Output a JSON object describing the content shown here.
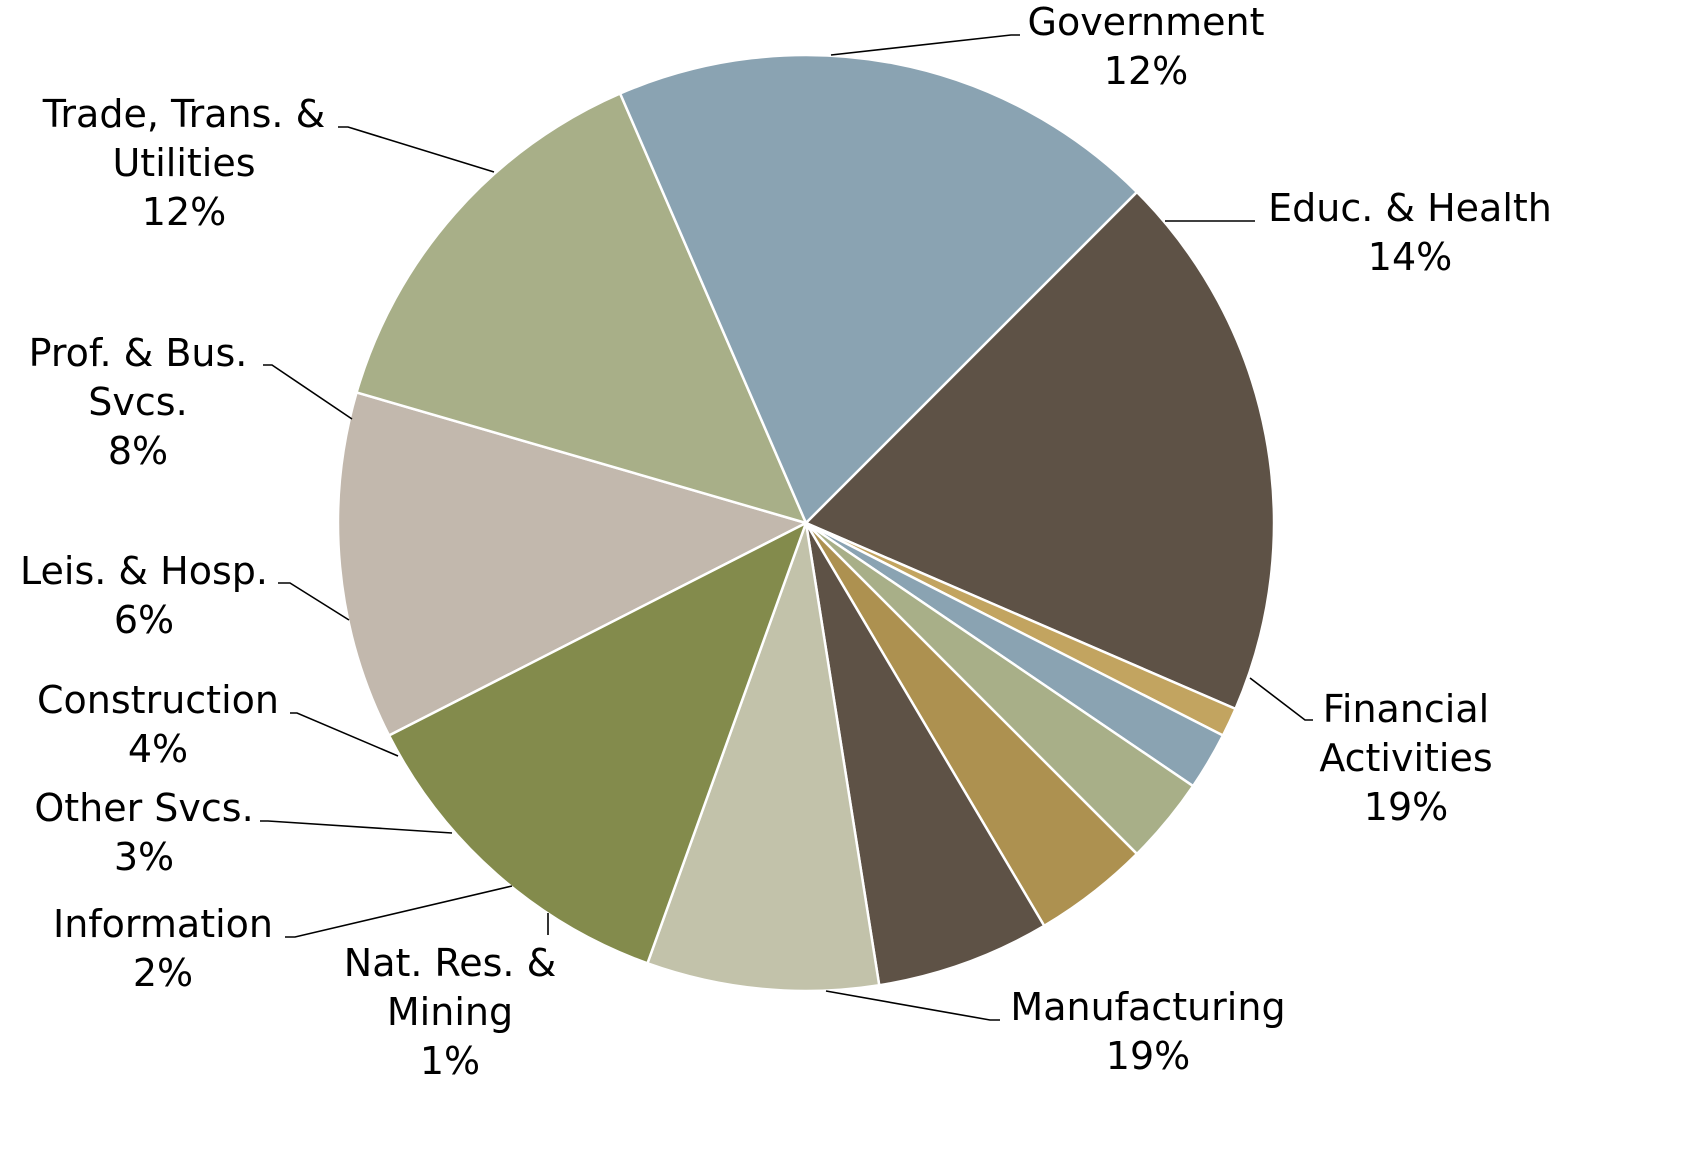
{
  "chart_data": {
    "type": "pie",
    "title": "",
    "slices": [
      {
        "label": [
          "Government"
        ],
        "pct": "12%",
        "value": 12,
        "color": "#c2b8ad"
      },
      {
        "label": [
          "Educ. & Health"
        ],
        "pct": "14%",
        "value": 14,
        "color": "#a8af88"
      },
      {
        "label": [
          "Financial",
          "Activities"
        ],
        "pct": "19%",
        "value": 19,
        "color": "#8aa3b2"
      },
      {
        "label": [
          "Manufacturing"
        ],
        "pct": "19%",
        "value": 19,
        "color": "#5e5246"
      },
      {
        "label": [
          "Nat. Res. &",
          "Mining"
        ],
        "pct": "1%",
        "value": 1,
        "color": "#c2a460"
      },
      {
        "label": [
          "Information"
        ],
        "pct": "2%",
        "value": 2,
        "color": "#8aa3b2"
      },
      {
        "label": [
          "Other Svcs."
        ],
        "pct": "3%",
        "value": 3,
        "color": "#a8af88"
      },
      {
        "label": [
          "Construction"
        ],
        "pct": "4%",
        "value": 4,
        "color": "#ad9150"
      },
      {
        "label": [
          "Leis. & Hosp."
        ],
        "pct": "6%",
        "value": 6,
        "color": "#5e5246"
      },
      {
        "label": [
          "Prof. & Bus.",
          "Svcs."
        ],
        "pct": "8%",
        "value": 8,
        "color": "#c2c2aa"
      },
      {
        "label": [
          "Trade, Trans. &",
          "Utilities"
        ],
        "pct": "12%",
        "value": 12,
        "color": "#838b4c"
      }
    ]
  }
}
